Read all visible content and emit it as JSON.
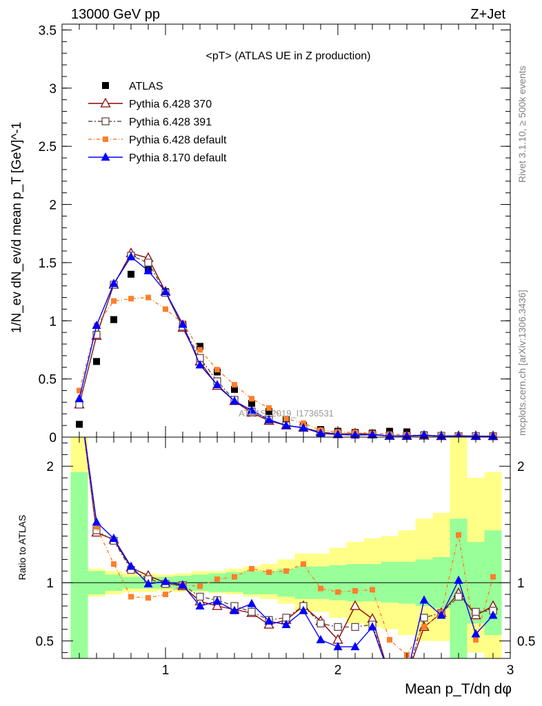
{
  "header": {
    "left": "13000 GeV pp",
    "right": "Z+Jet"
  },
  "side_labels": {
    "top": "Rivet 3.1.10, ≥ 500k events",
    "bottom": "mcplots.cern.ch [arXiv:1306.3436]"
  },
  "watermark": "ATLAS_2019_I1736531",
  "colors": {
    "data": "#000000",
    "p6_370": "#8b0000",
    "p6_391": "#654b4b",
    "p6_def": "#ff7f2a",
    "p8_def": "#0000ff",
    "band_inner": "#99ff99",
    "band_outer": "#ffff88"
  },
  "chart_data": [
    {
      "type": "line",
      "title": "<pT> (ATLAS UE in Z production)",
      "ylabel": "1/N_ev dN_ev/d mean p_T [GeV]^-1",
      "xlabel": "",
      "xlim": [
        0.4,
        3.0
      ],
      "ylim": [
        0,
        3.55
      ],
      "y_ticks": [
        "0",
        "0.5",
        "1",
        "1.5",
        "2",
        "2.5",
        "3",
        "3.5"
      ],
      "legend_position": "top-left",
      "x": [
        0.5,
        0.6,
        0.7,
        0.8,
        0.9,
        1.0,
        1.1,
        1.2,
        1.3,
        1.4,
        1.5,
        1.6,
        1.7,
        1.8,
        1.9,
        2.0,
        2.1,
        2.2,
        2.3,
        2.4,
        2.5,
        2.6,
        2.7,
        2.8,
        2.9
      ],
      "series": [
        {
          "name": "ATLAS",
          "values": [
            0.11,
            0.65,
            1.01,
            1.4,
            1.45,
            1.25,
            0.97,
            0.78,
            0.56,
            0.41,
            0.29,
            0.22,
            0.15,
            0.1,
            0.065,
            0.05,
            0.04,
            0.035,
            0.05,
            0.045,
            0.02,
            0.015,
            0.01,
            0.012,
            0.01
          ]
        },
        {
          "name": "Pythia 6.428 370",
          "values": [
            0.28,
            0.87,
            1.31,
            1.58,
            1.54,
            1.25,
            0.94,
            0.65,
            0.44,
            0.31,
            0.21,
            0.14,
            0.1,
            0.08,
            0.045,
            0.025,
            0.032,
            0.024,
            0.01,
            0.01,
            0.012,
            0.008,
            0.009,
            0.009,
            0.008
          ]
        },
        {
          "name": "Pythia 6.428 391",
          "values": [
            0.28,
            0.88,
            1.31,
            1.56,
            1.5,
            1.24,
            0.95,
            0.68,
            0.48,
            0.32,
            0.22,
            0.15,
            0.1,
            0.08,
            0.044,
            0.031,
            0.024,
            0.022,
            0.01,
            0.012,
            0.014,
            0.011,
            0.009,
            0.009,
            0.008
          ]
        },
        {
          "name": "Pythia 6.428 default",
          "values": [
            0.4,
            0.96,
            1.17,
            1.19,
            1.2,
            1.1,
            0.98,
            0.75,
            0.58,
            0.45,
            0.33,
            0.25,
            0.16,
            0.12,
            0.06,
            0.045,
            0.04,
            0.033,
            0.025,
            0.02,
            0.013,
            0.009,
            0.014,
            0.006,
            0.01
          ]
        },
        {
          "name": "Pythia 8.170 default",
          "values": [
            0.33,
            0.96,
            1.32,
            1.55,
            1.43,
            1.25,
            0.97,
            0.62,
            0.45,
            0.31,
            0.23,
            0.15,
            0.1,
            0.08,
            0.033,
            0.022,
            0.018,
            0.021,
            0.01,
            0.009,
            0.017,
            0.009,
            0.01,
            0.007,
            0.007
          ]
        }
      ]
    },
    {
      "type": "line",
      "title": "",
      "ylabel": "Ratio to ATLAS",
      "xlabel": "Mean p_T/dη dφ",
      "xlim": [
        0.4,
        3.0
      ],
      "ylim": [
        0.35,
        2.25
      ],
      "x_ticks": [
        "1",
        "2",
        "3"
      ],
      "y_ticks": [
        "0.5",
        "1",
        "2"
      ],
      "x": [
        0.5,
        0.6,
        0.7,
        0.8,
        0.9,
        1.0,
        1.1,
        1.2,
        1.3,
        1.4,
        1.5,
        1.6,
        1.7,
        1.8,
        1.9,
        2.0,
        2.1,
        2.2,
        2.3,
        2.4,
        2.5,
        2.6,
        2.7,
        2.8,
        2.9
      ],
      "band_inner": [
        [
          0.35,
          1.95
        ],
        [
          0.9,
          1.1
        ],
        [
          0.93,
          1.07
        ],
        [
          0.95,
          1.05
        ],
        [
          0.95,
          1.05
        ],
        [
          0.95,
          1.05
        ],
        [
          0.94,
          1.06
        ],
        [
          0.93,
          1.07
        ],
        [
          0.92,
          1.08
        ],
        [
          0.92,
          1.09
        ],
        [
          0.9,
          1.1
        ],
        [
          0.9,
          1.1
        ],
        [
          0.88,
          1.12
        ],
        [
          0.86,
          1.14
        ],
        [
          0.86,
          1.14
        ],
        [
          0.85,
          1.15
        ],
        [
          0.84,
          1.16
        ],
        [
          0.84,
          1.16
        ],
        [
          0.83,
          1.18
        ],
        [
          0.82,
          1.18
        ],
        [
          0.8,
          1.2
        ],
        [
          0.78,
          1.22
        ],
        [
          0.35,
          1.55
        ],
        [
          0.65,
          1.35
        ],
        [
          0.55,
          1.45
        ]
      ],
      "band_outer": [
        [
          0.35,
          2.25
        ],
        [
          0.88,
          1.12
        ],
        [
          0.9,
          1.1
        ],
        [
          0.92,
          1.08
        ],
        [
          0.92,
          1.08
        ],
        [
          0.93,
          1.07
        ],
        [
          0.92,
          1.08
        ],
        [
          0.92,
          1.1
        ],
        [
          0.91,
          1.1
        ],
        [
          0.9,
          1.12
        ],
        [
          0.88,
          1.14
        ],
        [
          0.86,
          1.16
        ],
        [
          0.82,
          1.2
        ],
        [
          0.75,
          1.25
        ],
        [
          0.75,
          1.25
        ],
        [
          0.7,
          1.3
        ],
        [
          0.65,
          1.35
        ],
        [
          0.62,
          1.38
        ],
        [
          0.6,
          1.4
        ],
        [
          0.55,
          1.45
        ],
        [
          0.5,
          1.55
        ],
        [
          0.5,
          1.6
        ],
        [
          0.35,
          2.25
        ],
        [
          0.4,
          1.9
        ],
        [
          0.35,
          1.95
        ]
      ],
      "series": [
        {
          "name": "Pythia 6.428 370",
          "values": [
            2.6,
            1.43,
            1.37,
            1.13,
            1.06,
            1.0,
            0.97,
            0.84,
            0.8,
            0.77,
            0.74,
            0.64,
            0.68,
            0.8,
            0.67,
            0.51,
            0.8,
            0.69,
            0.2,
            0.2,
            0.62,
            0.74,
            0.91,
            0.72,
            0.8
          ]
        },
        {
          "name": "Pythia 6.428 391",
          "values": [
            2.6,
            1.45,
            1.36,
            1.11,
            1.03,
            0.99,
            0.98,
            0.88,
            0.85,
            0.8,
            0.75,
            0.68,
            0.7,
            0.8,
            0.65,
            0.62,
            0.62,
            0.64,
            0.2,
            0.2,
            0.7,
            0.74,
            0.88,
            0.75,
            0.76
          ]
        },
        {
          "name": "Pythia 6.428 default",
          "values": [
            2.6,
            1.48,
            1.16,
            0.88,
            0.87,
            0.9,
            0.98,
            0.97,
            1.03,
            1.05,
            1.12,
            1.09,
            1.1,
            1.16,
            0.95,
            0.92,
            0.93,
            0.94,
            0.51,
            0.38,
            0.62,
            0.74,
            1.41,
            0.51,
            1.05
          ]
        },
        {
          "name": "Pythia 8.170 default",
          "values": [
            2.6,
            1.52,
            1.38,
            1.14,
            0.99,
            1.01,
            0.98,
            0.8,
            0.84,
            0.76,
            0.82,
            0.67,
            0.64,
            0.76,
            0.51,
            0.45,
            0.45,
            0.62,
            0.2,
            0.2,
            0.85,
            0.72,
            1.02,
            0.56,
            0.72
          ]
        }
      ]
    }
  ]
}
